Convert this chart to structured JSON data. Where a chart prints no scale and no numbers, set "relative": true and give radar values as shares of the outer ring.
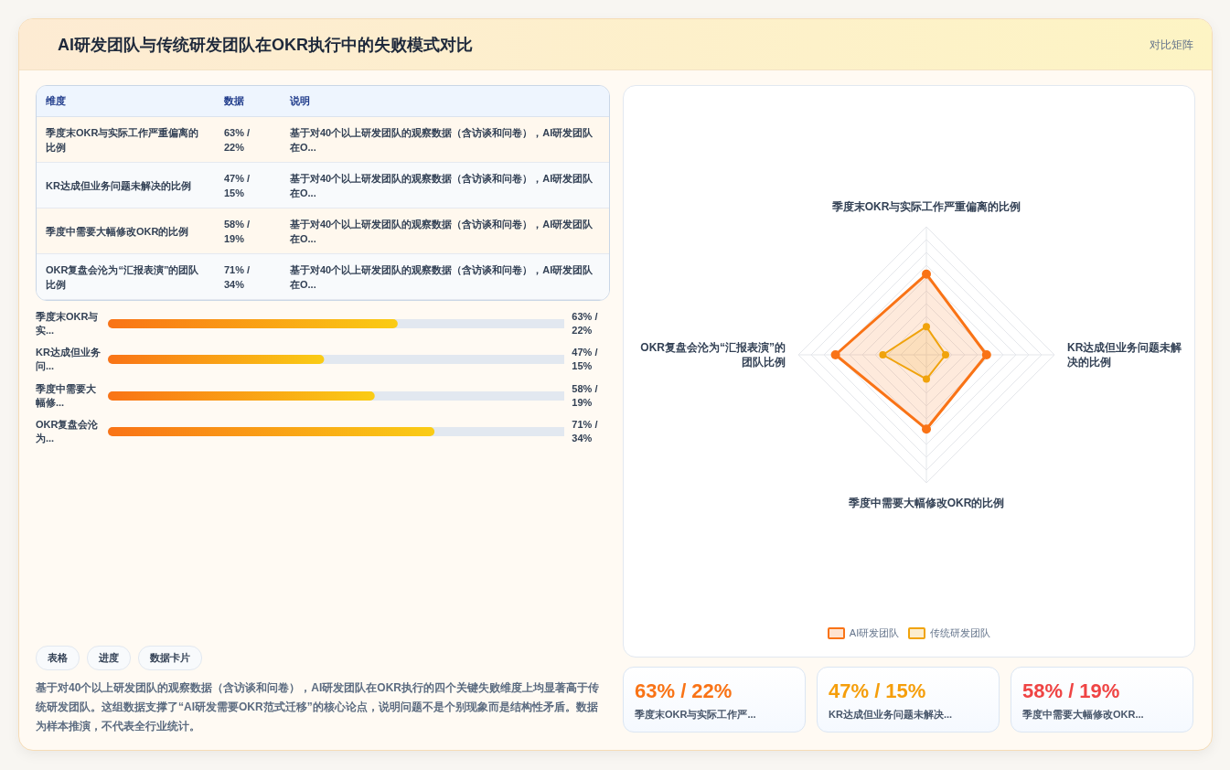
{
  "chart_data": [
    {
      "type": "other",
      "title": "AI研发团队与传统研发团队在OKR执行中的失败模式对比",
      "subtitle": "对比矩阵",
      "categories": [
        "季度末OKR与实际工作严重偏离的比例",
        "KR达成但业务问题未解决的比例",
        "季度中需要大幅修改OKR的比例",
        "OKR复盘会沦为“汇报表演”的团队比例"
      ],
      "value_labels": [
        "63% / 22%",
        "47% / 15%",
        "58% / 19%",
        "71% / 34%"
      ],
      "annotations": [
        "维度",
        "数据",
        "说明",
        "基于对40个以上研发团队的观察数据（含访谈和问卷），AI研发团队在O...",
        "基于对40个以上研发团队的观察数据（含访谈和问卷），AI研发团队在O...",
        "基于对40个以上研发团队的观察数据（含访谈和问卷），AI研发团队在O...",
        "基于对40个以上研发团队的观察数据（含访谈和问卷），AI研发团队在O..."
      ]
    },
    {
      "type": "bar",
      "orientation": "horizontal",
      "categories": [
        "季度末OKR与实...",
        "KR达成但业务问...",
        "季度中需要大幅修...",
        "OKR复盘会沦为..."
      ],
      "values": [
        63,
        47,
        58,
        71
      ],
      "xlim": [
        0,
        100
      ],
      "color": "#f97316",
      "value_labels": [
        "63% / 22%",
        "47% / 15%",
        "58% / 19%",
        "71% / 34%"
      ],
      "tick_labels": "y"
    },
    {
      "type": "other",
      "annotations": [
        "表格",
        "进度",
        "数据卡片",
        "基于对40个以上研发团队的观察数据（含访谈和问卷），AI研发团队在OKR执行的四个关键失败维度上均显著高于传统研发团队。这组数据支撑了“AI研发需要OKR范式迁移”的核心论点，说明问题不是个别现象而是结构性矛盾。数据为样本推演，不代表全行业统计。"
      ]
    },
    {
      "type": "radar",
      "relative": true,
      "grid": true,
      "legend": "bottom",
      "marker": "circle",
      "categories": [
        "季度末OKR与实际工作严重偏离的比例",
        "KR达成但业务问题未解决的比例",
        "季度中需要大幅修改OKR的比例",
        "OKR复盘会沦为“汇报表演”的团队比例"
      ],
      "series": [
        {
          "name": "AI研发团队",
          "color": "#f97316",
          "values": [
            0.63,
            0.47,
            0.58,
            0.71
          ]
        },
        {
          "name": "传统研发团队",
          "color": "#f0a30c",
          "values": [
            0.22,
            0.15,
            0.19,
            0.34
          ]
        }
      ]
    },
    {
      "type": "other",
      "categories": [
        "季度末OKR与实际工作严...",
        "KR达成但业务问题未解决...",
        "季度中需要大幅修改OKR..."
      ],
      "value_labels": [
        "63% / 22%",
        "47% / 15%",
        "58% / 19%"
      ]
    }
  ]
}
